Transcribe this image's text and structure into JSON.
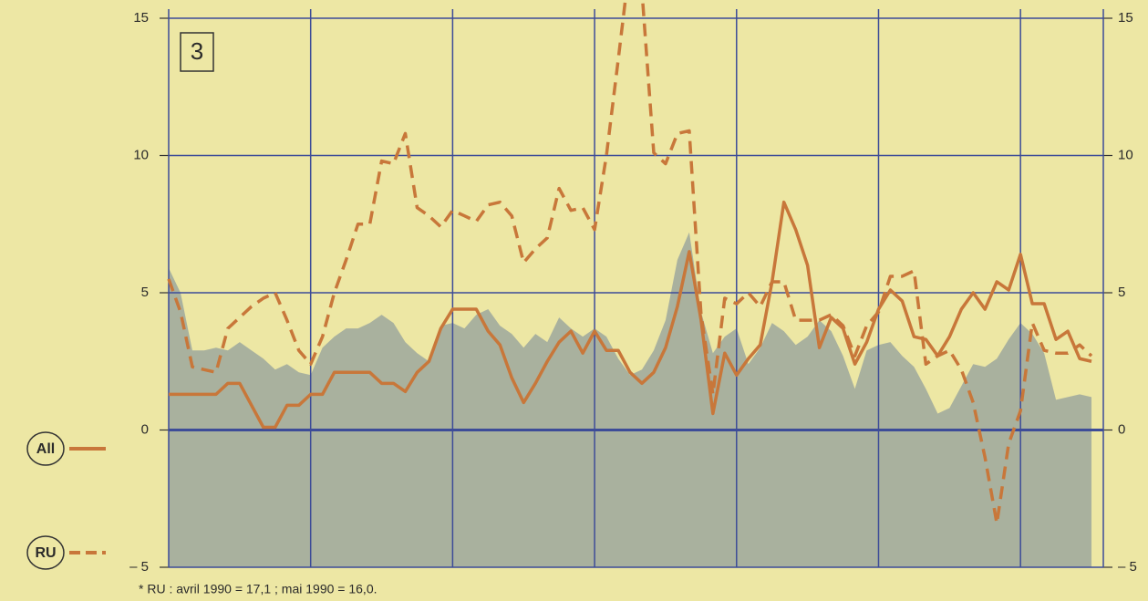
{
  "chart_data": {
    "type": "line",
    "box_label": "3",
    "footnote": "* RU : avril 1990 = 17,1 ; mai 1990 = 16,0.",
    "x": [
      0,
      1,
      2,
      3,
      4,
      5,
      6,
      7,
      8,
      9,
      10,
      11,
      12,
      13,
      14,
      15,
      16,
      17,
      18,
      19,
      20,
      21,
      22,
      23,
      24,
      25,
      26,
      27,
      28,
      29,
      30,
      31,
      32,
      33,
      34,
      35,
      36,
      37,
      38,
      39,
      40,
      41,
      42,
      43,
      44,
      45,
      46,
      47,
      48,
      49,
      50,
      51,
      52,
      53,
      54,
      55,
      56,
      57,
      58,
      59,
      60,
      61,
      62,
      63,
      64,
      65,
      66,
      67,
      68,
      69,
      70,
      71,
      72,
      73,
      74,
      75,
      76,
      77,
      78
    ],
    "xlim": [
      0,
      79
    ],
    "xticks": [
      12,
      24,
      36,
      48,
      60,
      72
    ],
    "ylim": [
      -5,
      15
    ],
    "yticks": [
      {
        "value": -5,
        "label": "– 5"
      },
      0,
      5,
      10,
      15
    ],
    "grid": true,
    "legend": "left",
    "series": [
      {
        "color": "#9ca79d",
        "fill": true,
        "values": [
          5.9,
          5.0,
          2.9,
          2.9,
          3.0,
          2.9,
          3.2,
          2.9,
          2.6,
          2.2,
          2.4,
          2.1,
          2.0,
          3.0,
          3.4,
          3.7,
          3.7,
          3.9,
          4.2,
          3.9,
          3.2,
          2.8,
          2.5,
          3.8,
          3.9,
          3.7,
          4.2,
          4.4,
          3.8,
          3.5,
          3.0,
          3.5,
          3.2,
          4.1,
          3.7,
          3.4,
          3.7,
          3.4,
          2.6,
          2.0,
          2.2,
          2.9,
          4.0,
          6.2,
          7.2,
          4.3,
          2.8,
          3.4,
          3.7,
          2.4,
          3.0,
          3.9,
          3.6,
          3.1,
          3.4,
          4.0,
          3.6,
          2.7,
          1.5,
          2.9,
          3.1,
          3.2,
          2.7,
          2.3,
          1.5,
          0.6,
          0.8,
          1.6,
          2.4,
          2.3,
          2.6,
          3.3,
          3.9,
          3.5,
          2.8,
          1.1,
          1.2,
          1.3,
          1.2
        ]
      },
      {
        "name": "All",
        "color": "#c8773a",
        "dashed": false,
        "values": [
          1.3,
          1.3,
          1.3,
          1.3,
          1.3,
          1.7,
          1.7,
          0.9,
          0.1,
          0.1,
          0.9,
          0.9,
          1.3,
          1.3,
          2.1,
          2.1,
          2.1,
          2.1,
          1.7,
          1.7,
          1.4,
          2.1,
          2.5,
          3.7,
          4.4,
          4.4,
          4.4,
          3.6,
          3.1,
          1.9,
          1.0,
          1.7,
          2.5,
          3.2,
          3.6,
          2.8,
          3.6,
          2.9,
          2.9,
          2.1,
          1.7,
          2.1,
          3.0,
          4.5,
          6.5,
          4.0,
          0.6,
          2.8,
          2.0,
          2.6,
          3.1,
          5.4,
          8.3,
          7.3,
          6.0,
          3.0,
          4.1,
          3.7,
          2.4,
          3.2,
          4.4,
          5.1,
          4.7,
          3.4,
          3.3,
          2.7,
          3.4,
          4.4,
          5.0,
          4.4,
          5.4,
          5.1,
          6.4,
          4.6,
          4.6,
          3.3,
          3.6,
          2.6,
          2.5
        ]
      },
      {
        "name": "RU",
        "color": "#c8773a",
        "dashed": true,
        "values": [
          5.5,
          4.3,
          2.3,
          2.2,
          2.1,
          3.7,
          4.1,
          4.5,
          4.8,
          5.0,
          4.0,
          2.9,
          2.4,
          3.4,
          5.0,
          6.2,
          7.5,
          7.5,
          9.8,
          9.7,
          10.8,
          8.1,
          7.8,
          7.4,
          8.0,
          7.8,
          7.6,
          8.2,
          8.3,
          7.8,
          6.1,
          6.6,
          7.0,
          8.8,
          8.0,
          8.1,
          7.3,
          10.0,
          13.5,
          17.1,
          16.0,
          10.1,
          9.7,
          10.8,
          10.9,
          4.2,
          1.3,
          4.8,
          4.6,
          5.0,
          4.5,
          5.4,
          5.4,
          4.0,
          4.0,
          4.0,
          4.2,
          3.8,
          2.7,
          3.8,
          4.3,
          5.6,
          5.6,
          5.8,
          2.4,
          2.7,
          2.9,
          2.2,
          1.0,
          -1.0,
          -3.4,
          -0.5,
          0.7,
          3.9,
          2.9,
          2.8,
          2.8,
          3.1,
          2.7
        ]
      }
    ]
  }
}
